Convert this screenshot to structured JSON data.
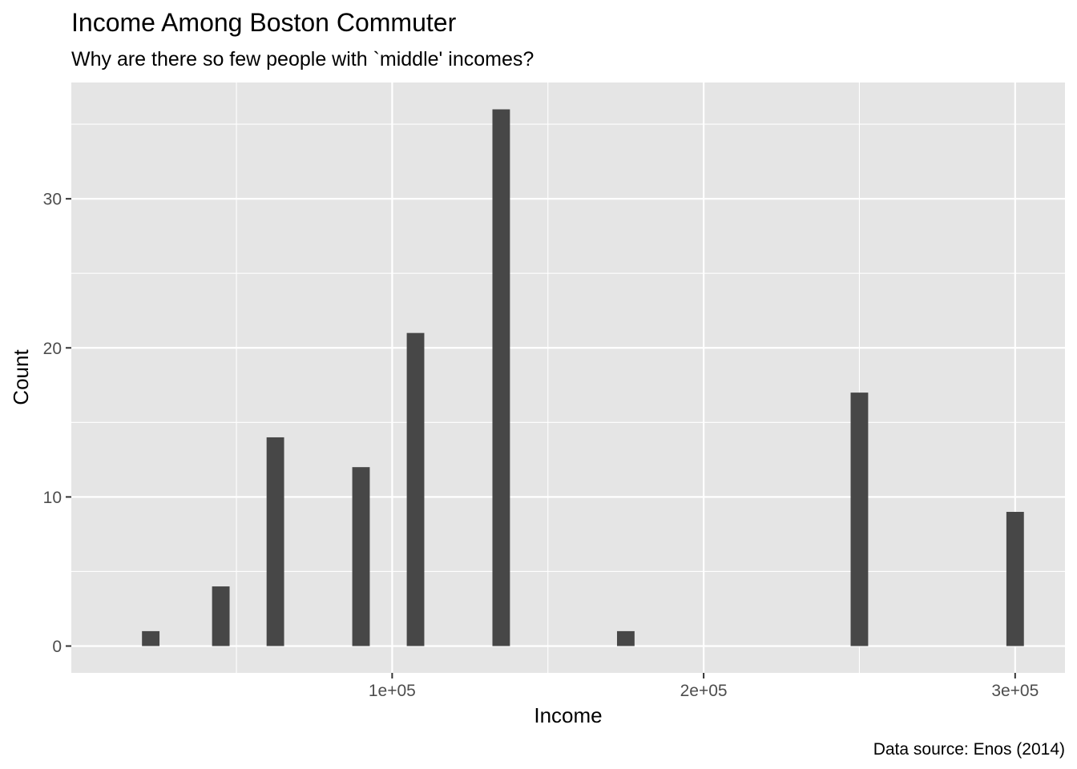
{
  "chart_data": {
    "type": "bar",
    "title": "Income Among Boston Commuter",
    "subtitle": "Why are there so few people with `middle' incomes?",
    "xlabel": "Income",
    "ylabel": "Count",
    "caption": "Data source: Enos (2014)",
    "x": [
      22500,
      45000,
      62500,
      90000,
      107500,
      135000,
      175000,
      250000,
      300000
    ],
    "values": [
      1,
      4,
      14,
      12,
      21,
      36,
      1,
      17,
      9
    ],
    "bin_width": 5625,
    "xlim": [
      -3000,
      316000
    ],
    "ylim": [
      -1.8,
      37.8
    ],
    "x_ticks": [
      {
        "value": 100000,
        "label": "1e+05"
      },
      {
        "value": 200000,
        "label": "2e+05"
      },
      {
        "value": 300000,
        "label": "3e+05"
      }
    ],
    "y_ticks": [
      {
        "value": 0,
        "label": "0"
      },
      {
        "value": 10,
        "label": "10"
      },
      {
        "value": 20,
        "label": "20"
      },
      {
        "value": 30,
        "label": "30"
      }
    ],
    "grid": true,
    "legend": "none",
    "colors": {
      "bar": "#474747",
      "panel": "#e5e5e5",
      "grid": "#ffffff",
      "tick_text": "#4d4d4d",
      "tick_mark": "#333333"
    }
  }
}
